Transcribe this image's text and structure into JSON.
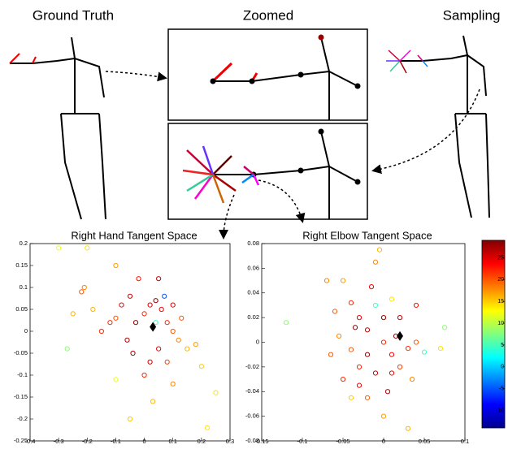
{
  "figure": {
    "labels": [
      "Ground Truth",
      "Zoomed",
      "Sampling"
    ]
  },
  "chart_data": [
    {
      "type": "scatter",
      "title": "Right Hand Tangent Space",
      "xlim": [
        -0.4,
        0.3
      ],
      "xticks": [
        -0.4,
        -0.3,
        -0.2,
        -0.1,
        0,
        0.1,
        0.2,
        0.3
      ],
      "ylim": [
        -0.25,
        0.2
      ],
      "yticks": [
        -0.25,
        -0.2,
        -0.15,
        -0.1,
        -0.05,
        0,
        0.05,
        0.1,
        0.15,
        0.2
      ],
      "x": [
        -0.3,
        -0.2,
        -0.25,
        -0.22,
        -0.21,
        -0.1,
        -0.12,
        -0.08,
        -0.05,
        -0.03,
        0.0,
        0.02,
        0.04,
        0.06,
        0.08,
        0.1,
        0.12,
        0.15,
        0.18,
        0.05,
        0.0,
        0.02,
        -0.06,
        -0.1,
        -0.15,
        -0.18,
        0.07,
        0.1,
        0.13,
        0.2,
        0.25,
        0.1,
        0.03,
        -0.05,
        -0.1,
        -0.27,
        0.22,
        -0.02,
        0.05,
        0.04,
        -0.04,
        0.08
      ],
      "values": [
        0.19,
        0.19,
        0.04,
        0.09,
        0.1,
        0.15,
        0.02,
        0.06,
        0.08,
        0.02,
        0.04,
        0.06,
        0.07,
        0.05,
        0.02,
        0.0,
        -0.02,
        -0.04,
        -0.03,
        -0.04,
        -0.1,
        -0.07,
        -0.02,
        0.03,
        0.0,
        0.05,
        0.08,
        0.06,
        0.03,
        -0.08,
        -0.14,
        -0.12,
        -0.16,
        -0.2,
        -0.11,
        -0.04,
        -0.22,
        0.12,
        0.12,
        0.02,
        -0.05,
        -0.07
      ],
      "color_values": [
        12,
        14,
        16,
        20,
        18,
        17,
        22,
        24,
        26,
        28,
        22,
        25,
        28,
        24,
        22,
        20,
        18,
        16,
        17,
        24,
        22,
        26,
        27,
        20,
        22,
        16,
        -5,
        25,
        20,
        15,
        14,
        18,
        16,
        15,
        12,
        8,
        14,
        23,
        26,
        5,
        27,
        21
      ],
      "mean": {
        "x": 0.03,
        "y": 0.01
      }
    },
    {
      "type": "scatter",
      "title": "Right Elbow Tangent Space",
      "xlim": [
        -0.15,
        0.1
      ],
      "xticks": [
        -0.15,
        -0.1,
        -0.05,
        0,
        0.05,
        0.1
      ],
      "ylim": [
        -0.08,
        0.08
      ],
      "yticks": [
        -0.08,
        -0.06,
        -0.04,
        -0.02,
        0,
        0.02,
        0.04,
        0.06,
        0.08
      ],
      "x": [
        -0.12,
        -0.07,
        -0.06,
        -0.05,
        -0.04,
        -0.03,
        -0.02,
        -0.01,
        0.0,
        0.01,
        0.02,
        -0.01,
        -0.005,
        0.0,
        0.01,
        -0.02,
        -0.03,
        -0.04,
        -0.055,
        -0.065,
        -0.05,
        -0.03,
        -0.02,
        0.0,
        0.01,
        0.02,
        0.03,
        0.035,
        0.04,
        0.05,
        0.075,
        0.07,
        0.03,
        -0.04,
        -0.01,
        0.005,
        0.015,
        -0.015,
        0.04,
        -0.035
      ],
      "values": [
        0.016,
        0.05,
        0.025,
        0.05,
        0.032,
        0.02,
        0.01,
        0.03,
        0.02,
        0.035,
        0.02,
        0.065,
        0.075,
        0.0,
        -0.01,
        -0.01,
        -0.02,
        -0.006,
        0.005,
        -0.01,
        -0.03,
        -0.035,
        -0.045,
        -0.06,
        -0.025,
        -0.02,
        -0.005,
        -0.03,
        0.0,
        -0.008,
        0.012,
        -0.005,
        -0.07,
        -0.045,
        -0.025,
        -0.04,
        0.005,
        0.045,
        0.03,
        0.012
      ],
      "color_values": [
        8,
        18,
        20,
        17,
        22,
        24,
        26,
        5,
        28,
        14,
        26,
        18,
        16,
        22,
        24,
        28,
        22,
        20,
        18,
        20,
        22,
        24,
        20,
        17,
        24,
        21,
        22,
        18,
        20,
        5,
        8,
        14,
        16,
        15,
        26,
        27,
        28,
        24,
        23,
        28
      ],
      "mean": {
        "x": 0.02,
        "y": 0.005
      },
      "colorbar": {
        "lim": [
          -14,
          29
        ],
        "ticks": [
          -10,
          -5,
          0,
          5,
          10,
          15,
          20,
          25
        ]
      }
    }
  ]
}
